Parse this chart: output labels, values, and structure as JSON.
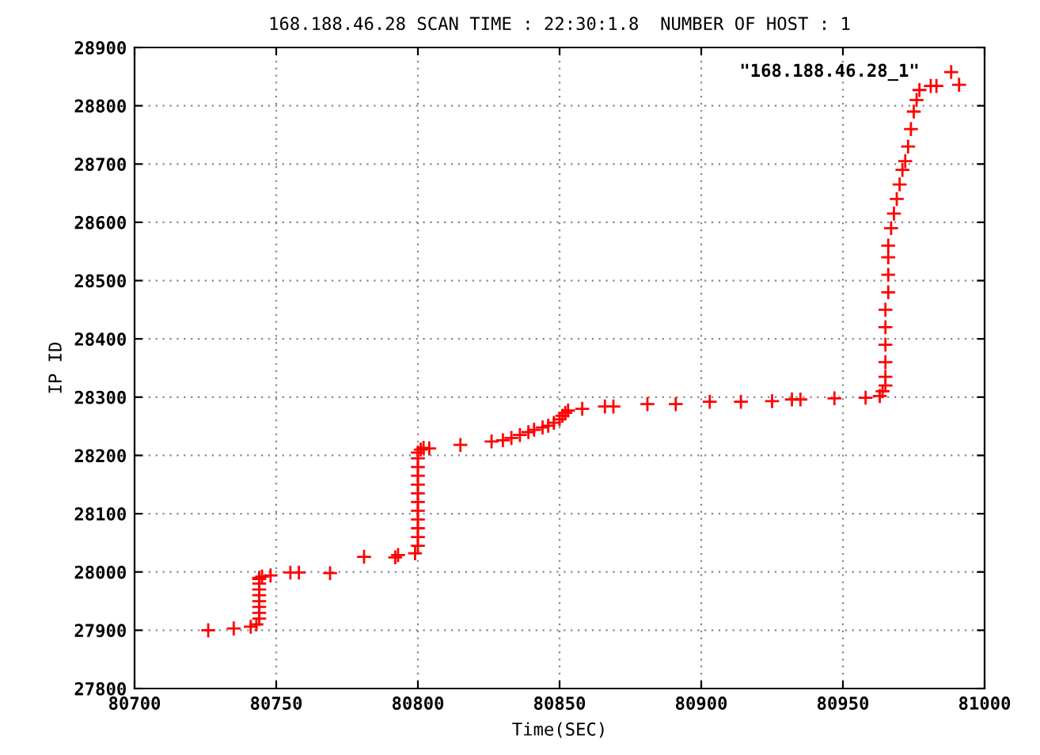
{
  "chart_data": {
    "type": "scatter",
    "title": "168.188.46.28 SCAN TIME : 22:30:1.8  NUMBER OF HOST : 1",
    "xlabel": "Time(SEC)",
    "ylabel": "IP ID",
    "series": [
      {
        "name": "\"168.188.46.28_1\"",
        "color": "#ff0000",
        "x": [
          80726,
          80735,
          80741,
          80743,
          80744,
          80744,
          80744,
          80744,
          80744,
          80744,
          80744,
          80744,
          80744,
          80745,
          80748,
          80755,
          80758,
          80769,
          80781,
          80792,
          80793,
          80799,
          80800,
          80800,
          80800,
          80800,
          80800,
          80800,
          80800,
          80800,
          80800,
          80800,
          80800,
          80800,
          80801,
          80802,
          80804,
          80815,
          80826,
          80830,
          80833,
          80836,
          80839,
          80841,
          80844,
          80846,
          80848,
          80850,
          80851,
          80852,
          80853,
          80858,
          80866,
          80869,
          80881,
          80891,
          80903,
          80914,
          80925,
          80932,
          80935,
          80947,
          80958,
          80963,
          80964,
          80965,
          80965,
          80965,
          80965,
          80965,
          80965,
          80966,
          80966,
          80966,
          80966,
          80967,
          80968,
          80969,
          80970,
          80971,
          80972,
          80973,
          80974,
          80975,
          80976,
          80977,
          80981,
          80983,
          80991
        ],
        "values": [
          27900,
          27903,
          27906,
          27910,
          27920,
          27930,
          27940,
          27950,
          27960,
          27970,
          27980,
          27988,
          27990,
          27992,
          27994,
          27999,
          27999,
          27998,
          28026,
          28025,
          28029,
          28032,
          28045,
          28060,
          28075,
          28090,
          28105,
          28120,
          28135,
          28150,
          28165,
          28180,
          28195,
          28205,
          28210,
          28213,
          28212,
          28218,
          28224,
          28226,
          28230,
          28235,
          28240,
          28244,
          28248,
          28251,
          28256,
          28262,
          28268,
          28273,
          28277,
          28280,
          28284,
          28284,
          28288,
          28288,
          28292,
          28292,
          28293,
          28296,
          28296,
          28298,
          28299,
          28302,
          28310,
          28320,
          28335,
          28360,
          28390,
          28420,
          28450,
          28480,
          28510,
          28540,
          28560,
          28590,
          28615,
          28640,
          28665,
          28690,
          28705,
          28730,
          28760,
          28790,
          28810,
          28827,
          28834,
          28834,
          28836
        ]
      }
    ],
    "xlim": [
      80700,
      81000
    ],
    "xticks": [
      80700,
      80750,
      80800,
      80850,
      80900,
      80950,
      81000
    ],
    "ylim": [
      27800,
      28900
    ],
    "yticks": [
      27800,
      27900,
      28000,
      28100,
      28200,
      28300,
      28400,
      28500,
      28600,
      28700,
      28800,
      28900
    ],
    "grid": true,
    "legend": "top right",
    "marker": "cross"
  }
}
